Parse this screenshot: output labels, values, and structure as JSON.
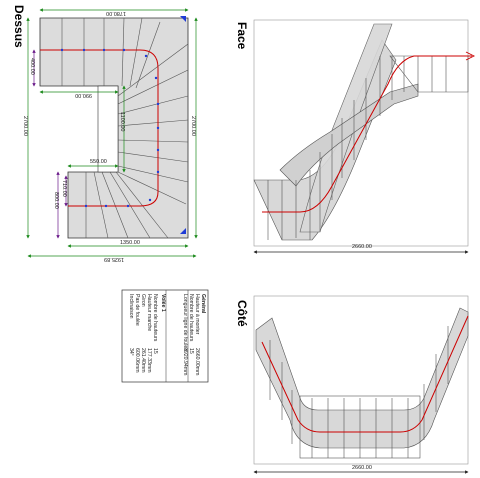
{
  "views": {
    "top": {
      "label": "Dessus"
    },
    "face": {
      "label": "Face"
    },
    "side": {
      "label": "Côté"
    }
  },
  "dimensions": {
    "top_width_total": "1780.00",
    "top_depth_total": "2700.00",
    "top_depth_right": "2700.00",
    "top_bottom_width": "1350.00",
    "top_bottom_outer": "1925.89",
    "top_inner_width": "990.00",
    "top_inner_height": "1100.00",
    "top_landing_width": "550.00",
    "top_upper_flight": "400.00",
    "top_lower_flight": "800.00",
    "top_lower_flight_b": "710.00",
    "face_width": "2660.00",
    "side_width": "2660.00"
  },
  "table": {
    "general_header": "Général",
    "rows_general": [
      {
        "label": "Hauteur à monter",
        "value": "2660.00mm"
      },
      {
        "label": "Nombre de hauteurs",
        "value": "15"
      },
      {
        "label": "Longueur ligne de foulée",
        "value": "3920.94mm"
      }
    ],
    "flight_header": "Volée 1",
    "rows_flight": [
      {
        "label": "Nombre de hauteurs",
        "value": "15"
      },
      {
        "label": "Hauteur marche",
        "value": "177.33mm"
      },
      {
        "label": "Giron",
        "value": "261.40mm"
      },
      {
        "label": "Pas de foulée",
        "value": "600.06mm"
      },
      {
        "label": "Inclinaison",
        "value": "34°"
      }
    ]
  },
  "colors": {
    "tread_fill": "#dcdcdc",
    "walk_line": "#cc0000",
    "dim_green": "#1c8a1c",
    "dim_purple": "#6a1a8a",
    "marker_blue": "#1f3bd6"
  }
}
